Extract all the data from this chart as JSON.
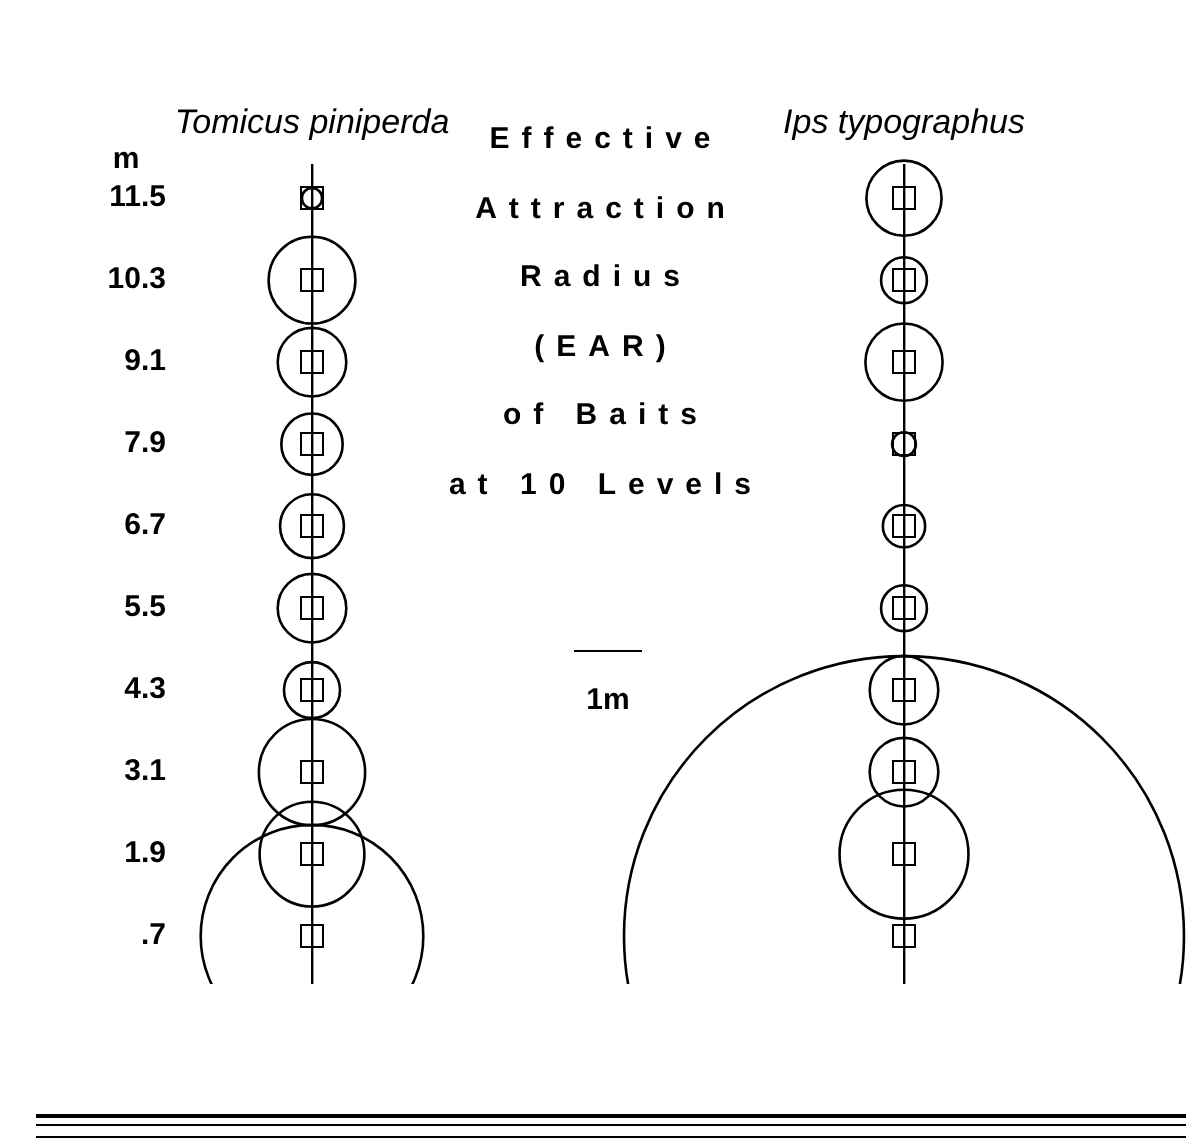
{
  "chart_data": {
    "type": "bubble",
    "title": "Effective\nAttraction\nRadius\n(EAR)\nof Baits\nat 10 Levels",
    "ylabel": "m",
    "categories": [
      "Tomicus piniperda",
      "Ips typographus"
    ],
    "series": [
      {
        "color": "#000000",
        "x": [
          "Tomicus piniperda",
          "Tomicus piniperda",
          "Tomicus piniperda",
          "Tomicus piniperda",
          "Tomicus piniperda",
          "Tomicus piniperda",
          "Tomicus piniperda",
          "Tomicus piniperda",
          "Tomicus piniperda",
          "Tomicus piniperda"
        ],
        "values": [
          11.5,
          10.3,
          9.1,
          7.9,
          6.7,
          5.5,
          4.3,
          3.1,
          1.9,
          0.7
        ],
        "sizes": [
          0.0013,
          0.024,
          0.015,
          0.012,
          0.013,
          0.015,
          0.01,
          0.036,
          0.035,
          0.158
        ]
      },
      {
        "color": "#000000",
        "x": [
          "Ips typographus",
          "Ips typographus",
          "Ips typographus",
          "Ips typographus",
          "Ips typographus",
          "Ips typographus",
          "Ips typographus",
          "Ips typographus",
          "Ips typographus",
          "Ips typographus"
        ],
        "values": [
          11.5,
          10.3,
          9.1,
          7.9,
          6.7,
          5.5,
          4.3,
          3.1,
          1.9,
          0.7
        ],
        "sizes": [
          0.018,
          0.0067,
          0.019,
          0.0018,
          0.0057,
          0.0067,
          0.015,
          0.015,
          0.053,
          1
        ]
      }
    ],
    "ylim": [
      0,
      12
    ],
    "yticks": [
      11.5,
      10.3,
      9.1,
      7.9,
      6.7,
      5.5,
      4.3,
      3.1,
      1.9,
      {
        "value": 0.7,
        "label": ".7"
      }
    ],
    "annotations": [
      "1m"
    ],
    "grid": "x"
  }
}
